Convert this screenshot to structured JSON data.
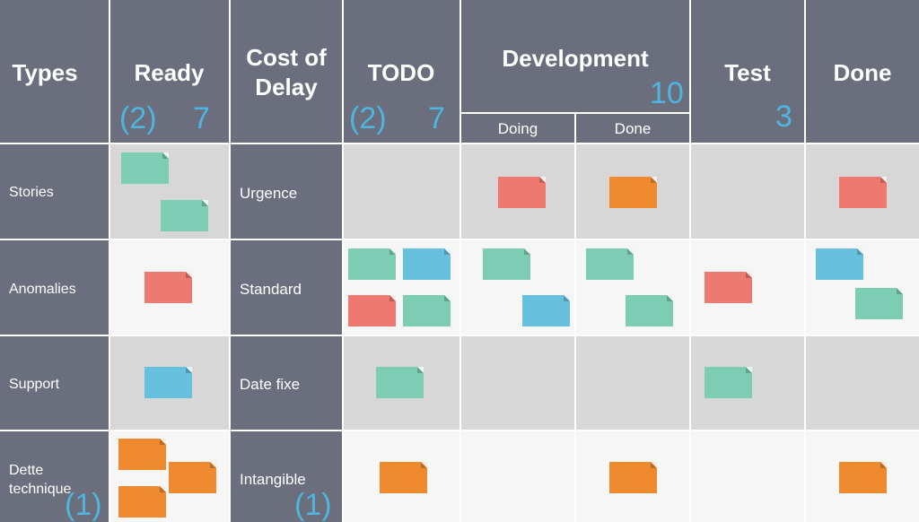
{
  "colors": {
    "header_bg": "#6b6e7c",
    "wip_text": "#4fb4e0",
    "row_gray": "#d7d7d7",
    "row_white": "#f6f6f6",
    "card_green": "#7ccdb3",
    "card_blue": "#67c0dd",
    "card_red": "#ee7970",
    "card_orange": "#f08a31"
  },
  "header": {
    "types": "Types",
    "ready": {
      "title": "Ready",
      "class_limit": "(2)",
      "wip_limit": "7"
    },
    "cost_of_delay": {
      "line1": "Cost of",
      "line2": "Delay"
    },
    "todo": {
      "title": "TODO",
      "class_limit": "(2)",
      "wip_limit": "7"
    },
    "development": {
      "title": "Development",
      "wip_limit": "10",
      "doing": "Doing",
      "done": "Done"
    },
    "test": {
      "title": "Test",
      "wip_limit": "3"
    },
    "done": {
      "title": "Done"
    }
  },
  "rows": [
    {
      "type": "Stories",
      "cod": "Urgence"
    },
    {
      "type": "Anomalies",
      "cod": "Standard"
    },
    {
      "type": "Support",
      "cod": "Date fixe"
    },
    {
      "type_line1": "Dette",
      "type_line2": "technique",
      "type_limit": "(1)",
      "cod": "Intangible",
      "cod_limit": "(1)"
    }
  ],
  "cards": [
    {
      "row": "Stories",
      "column": "Ready",
      "color": "green"
    },
    {
      "row": "Stories",
      "column": "Ready",
      "color": "green"
    },
    {
      "row": "Stories",
      "column": "Development Doing",
      "color": "red"
    },
    {
      "row": "Stories",
      "column": "Development Done",
      "color": "orange"
    },
    {
      "row": "Stories",
      "column": "Done",
      "color": "red"
    },
    {
      "row": "Anomalies",
      "column": "Ready",
      "color": "red"
    },
    {
      "row": "Anomalies",
      "column": "TODO",
      "color": "green"
    },
    {
      "row": "Anomalies",
      "column": "TODO",
      "color": "blue"
    },
    {
      "row": "Anomalies",
      "column": "TODO",
      "color": "red"
    },
    {
      "row": "Anomalies",
      "column": "TODO",
      "color": "green"
    },
    {
      "row": "Anomalies",
      "column": "Development Doing",
      "color": "green"
    },
    {
      "row": "Anomalies",
      "column": "Development Doing",
      "color": "blue"
    },
    {
      "row": "Anomalies",
      "column": "Development Done",
      "color": "green"
    },
    {
      "row": "Anomalies",
      "column": "Development Done",
      "color": "green"
    },
    {
      "row": "Anomalies",
      "column": "Test",
      "color": "red"
    },
    {
      "row": "Anomalies",
      "column": "Done",
      "color": "blue"
    },
    {
      "row": "Anomalies",
      "column": "Done",
      "color": "green"
    },
    {
      "row": "Support",
      "column": "Ready",
      "color": "blue"
    },
    {
      "row": "Support",
      "column": "TODO",
      "color": "green"
    },
    {
      "row": "Support",
      "column": "Test",
      "color": "green"
    },
    {
      "row": "Dette technique",
      "column": "Ready",
      "color": "orange"
    },
    {
      "row": "Dette technique",
      "column": "Ready",
      "color": "orange"
    },
    {
      "row": "Dette technique",
      "column": "Ready",
      "color": "orange"
    },
    {
      "row": "Dette technique",
      "column": "TODO",
      "color": "orange"
    },
    {
      "row": "Dette technique",
      "column": "Development Done",
      "color": "orange"
    },
    {
      "row": "Dette technique",
      "column": "Done",
      "color": "orange"
    }
  ]
}
